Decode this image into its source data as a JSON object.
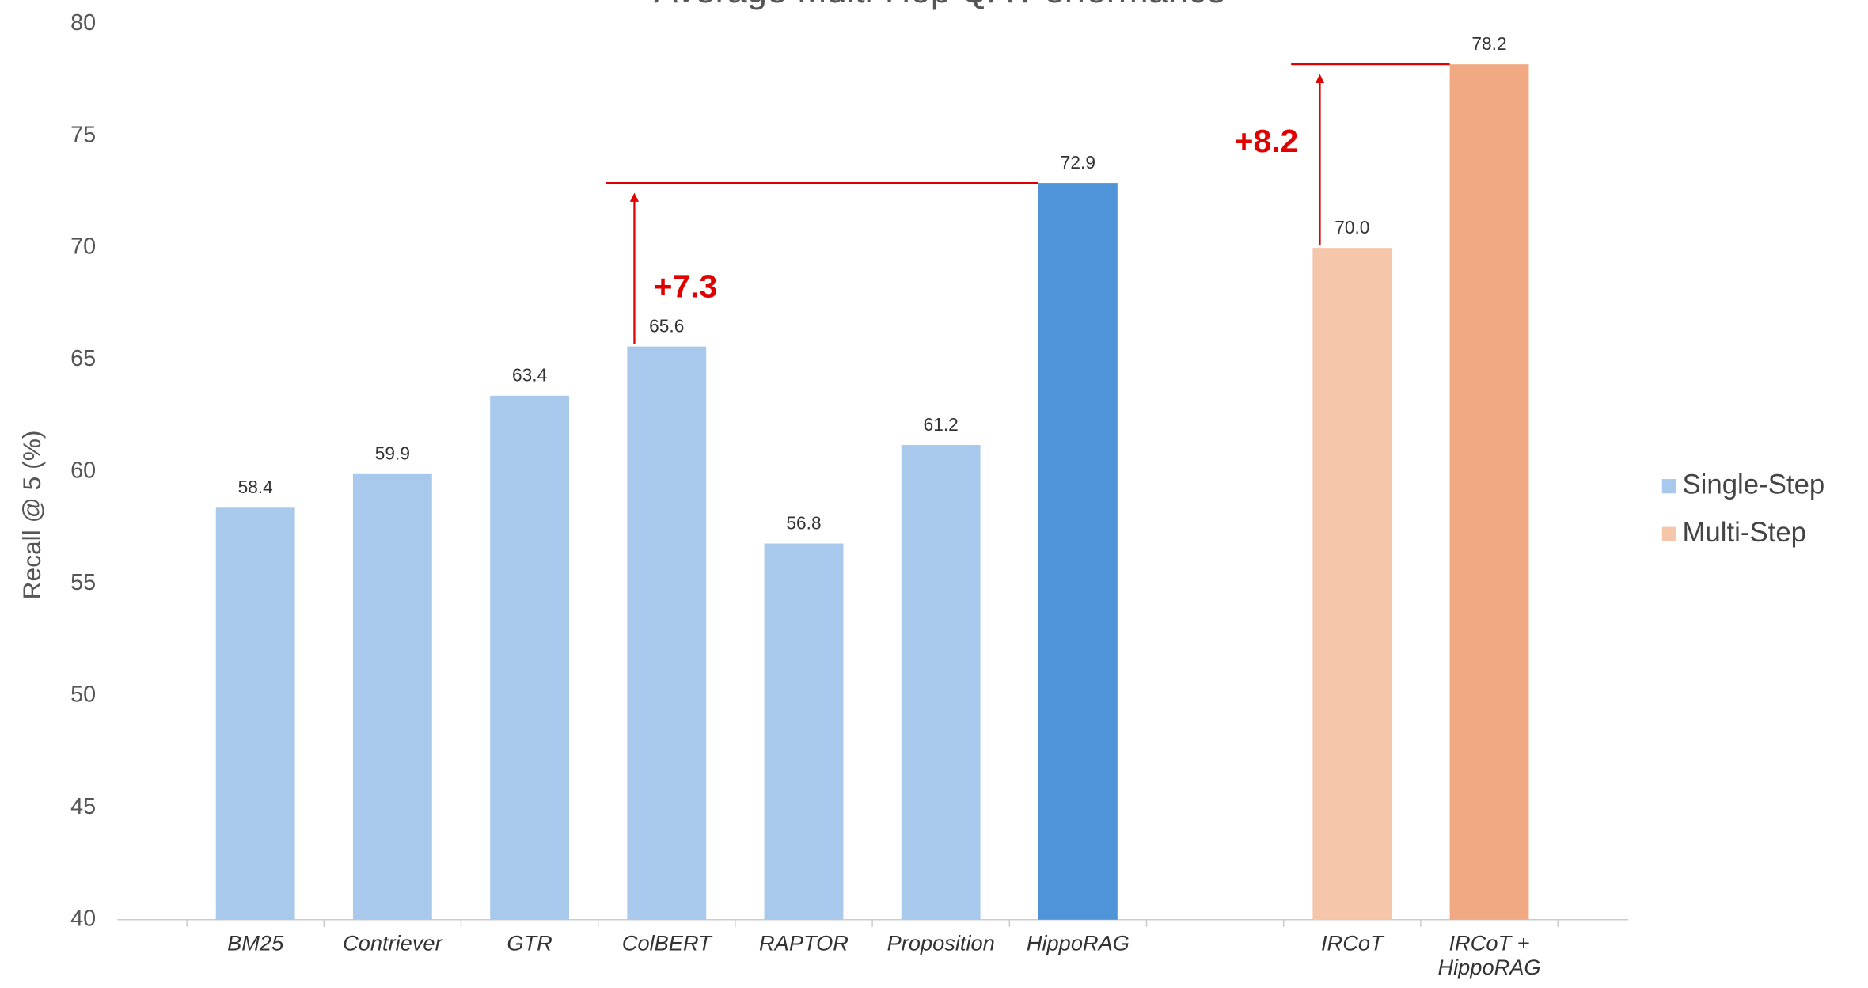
{
  "chart_data": {
    "type": "bar",
    "title": "Average Multi-Hop QA Performance",
    "ylabel": "Recall @ 5 (%)",
    "categories": [
      "BM25",
      "Contriever",
      "GTR",
      "ColBERT",
      "RAPTOR",
      "Proposition",
      "HippoRAG",
      null,
      "IRCoT",
      "IRCoT +\nHippoRAG"
    ],
    "series": [
      {
        "name": "Single-Step",
        "color": "#a8c9eb",
        "highlight_color": "#4f94d8",
        "values": [
          58.4,
          59.9,
          63.4,
          65.6,
          56.8,
          61.2,
          72.9,
          null,
          null,
          null
        ],
        "value_labels": [
          "58.4",
          "59.9",
          "63.4",
          "65.6",
          "56.8",
          "61.2",
          "72.9",
          null,
          null,
          null
        ]
      },
      {
        "name": "Multi-Step",
        "color": "#f5c6a9",
        "highlight_color": "#f0a982",
        "values": [
          null,
          null,
          null,
          null,
          null,
          null,
          null,
          null,
          70.0,
          78.2
        ],
        "value_labels": [
          null,
          null,
          null,
          null,
          null,
          null,
          null,
          null,
          "70.0",
          "78.2"
        ]
      }
    ],
    "highlight_categories": [
      "HippoRAG",
      "IRCoT +\nHippoRAG"
    ],
    "annotations": [
      {
        "text": "+7.3",
        "from": "ColBERT",
        "to": "HippoRAG",
        "color": "#e00000"
      },
      {
        "text": "+8.2",
        "from": "IRCoT",
        "to": "IRCoT +\nHippoRAG",
        "color": "#e00000"
      }
    ],
    "ylim": [
      40,
      80
    ],
    "yticks": [
      40,
      45,
      50,
      55,
      60,
      65,
      70,
      75,
      80
    ],
    "grid": false,
    "legend": "right"
  }
}
